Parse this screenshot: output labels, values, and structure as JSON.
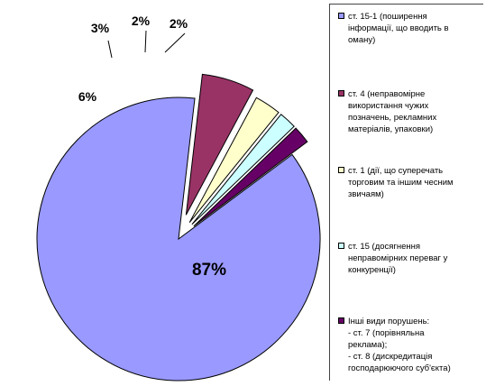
{
  "chart_data": {
    "type": "pie",
    "categories": [
      "ст. 15-1 (поширення інформації, що вводить в оману)",
      "ст. 4 (неправомірне використання чужих позначень, рекламних матеріалів, упаковки)",
      "ст. 1 (дії, що суперечать торговим та іншим чесним звичаям)",
      "ст. 15 (досягнення неправомірних переваг у конкуренції)",
      "Інші види порушень: - ст. 7 (порівняльна реклама); - ст. 8 (дискредитація господарюючого суб'єкта)"
    ],
    "values": [
      87,
      6,
      3,
      2,
      2
    ],
    "data_labels": [
      "87%",
      "6%",
      "3%",
      "2%",
      "2%"
    ],
    "colors": [
      "#9999ff",
      "#993366",
      "#ffffcc",
      "#ccffff",
      "#660066"
    ],
    "exploded": true,
    "legend_position": "right"
  },
  "legend": [
    {
      "text": "ст. 15-1 (поширення\nінформації, що вводить в\nоману)",
      "color": "#9999ff"
    },
    {
      "text": "ст. 4 (неправомірне\nвикористання чужих\nпозначень, рекламних\nматеріалів, упаковки)",
      "color": "#993366"
    },
    {
      "text": "ст. 1 (дії, що суперечать\nторговим та іншим чесним\nзвичаям)",
      "color": "#ffffcc"
    },
    {
      "text": "ст. 15 (досягнення\nнеправомірних переваг у\nконкуренції)",
      "color": "#ccffff"
    },
    {
      "text": "Інші види порушень:\n- ст. 7 (порівняльна\nреклама);\n- ст. 8 (дискредитація\nгосподарюючого суб'єкта)",
      "color": "#660066"
    }
  ]
}
